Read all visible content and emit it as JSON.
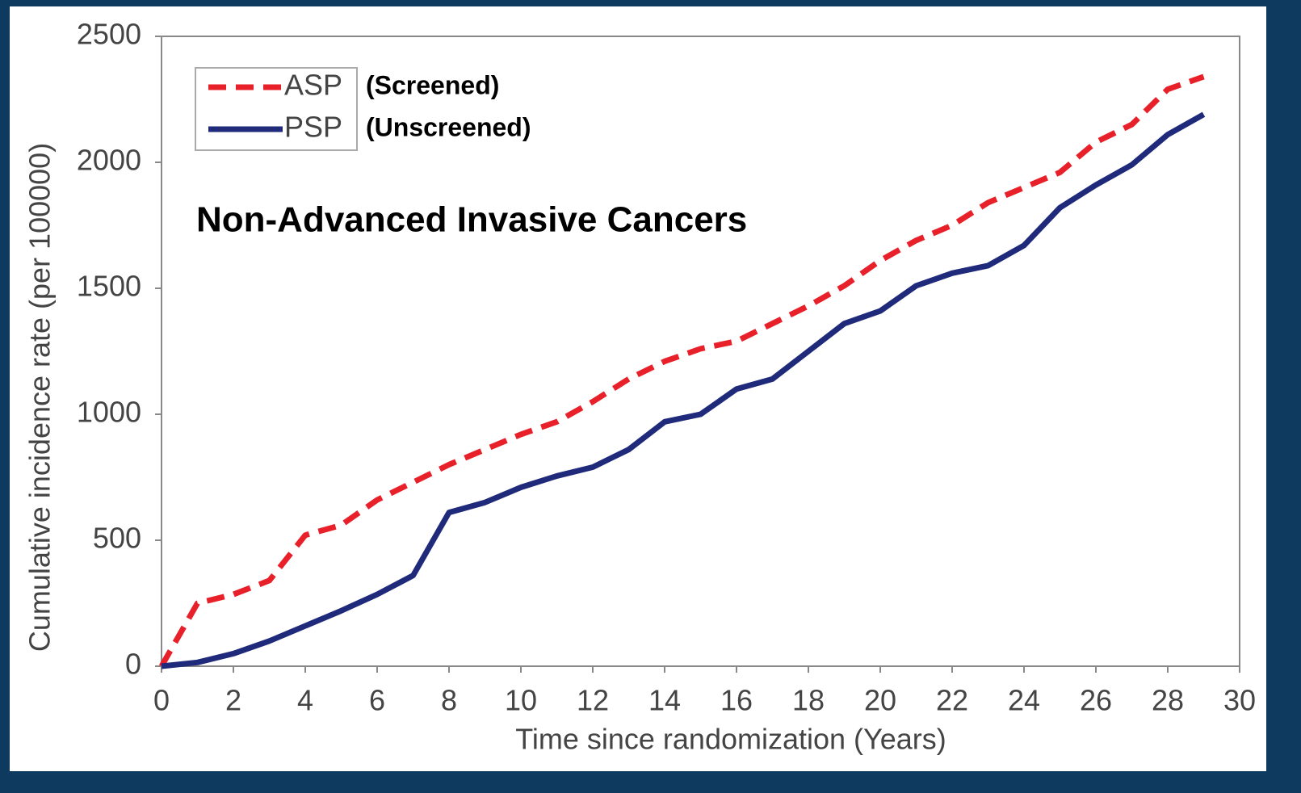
{
  "chart_data": {
    "type": "line",
    "title": "Non-Advanced Invasive Cancers",
    "x_label": "Time since randomization (Years)",
    "y_label": "Cumulative incidence rate (per 100000)",
    "x": [
      0,
      1,
      2,
      3,
      4,
      5,
      6,
      7,
      8,
      9,
      10,
      11,
      12,
      13,
      14,
      15,
      16,
      17,
      18,
      19,
      20,
      21,
      22,
      23,
      24,
      25,
      26,
      27,
      28,
      29
    ],
    "series": [
      {
        "name": "ASP",
        "color": "#e8202a",
        "dashed": true,
        "values": [
          0,
          250,
          285,
          340,
          520,
          560,
          660,
          730,
          800,
          860,
          920,
          970,
          1050,
          1140,
          1210,
          1260,
          1290,
          1360,
          1430,
          1510,
          1610,
          1690,
          1750,
          1840,
          1900,
          1960,
          2080,
          2150,
          2290,
          2340
        ]
      },
      {
        "name": "PSP",
        "color": "#1f2a7a",
        "dashed": false,
        "values": [
          0,
          15,
          50,
          100,
          160,
          220,
          285,
          360,
          610,
          650,
          710,
          755,
          790,
          860,
          970,
          1000,
          1100,
          1140,
          1250,
          1360,
          1410,
          1510,
          1560,
          1590,
          1670,
          1820,
          1910,
          1990,
          2110,
          2190
        ]
      }
    ],
    "annotations": [
      "(Screened)",
      "(Unscreened)"
    ],
    "xlim": [
      0,
      30
    ],
    "xticks": [
      0,
      2,
      4,
      6,
      8,
      10,
      12,
      14,
      16,
      18,
      20,
      22,
      24,
      26,
      28,
      30
    ],
    "ylim": [
      0,
      2500
    ],
    "yticks": [
      0,
      500,
      1000,
      1500,
      2000,
      2500
    ],
    "grid": false
  }
}
